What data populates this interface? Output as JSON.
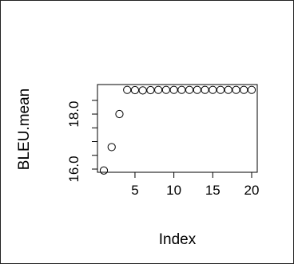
{
  "chart_data": {
    "type": "scatter",
    "title": "",
    "xlabel": "Index",
    "ylabel": "BLEU.mean",
    "xlim": [
      1,
      20
    ],
    "ylim": [
      16.0,
      18.9
    ],
    "xticks": [
      5,
      10,
      15,
      20
    ],
    "xtick_labels": [
      "5",
      "10",
      "15",
      "20"
    ],
    "yticks": [
      16.0,
      16.5,
      17.0,
      17.5,
      18.0,
      18.5
    ],
    "ytick_labels": [
      "16.0",
      "",
      "",
      "",
      "18.0",
      ""
    ],
    "grid": false,
    "marker": "open-circle",
    "x": [
      1,
      2,
      3,
      4,
      5,
      6,
      7,
      8,
      9,
      10,
      11,
      12,
      13,
      14,
      15,
      16,
      17,
      18,
      19,
      20
    ],
    "y": [
      15.95,
      16.8,
      18.0,
      18.88,
      18.87,
      18.86,
      18.87,
      18.88,
      18.88,
      18.88,
      18.88,
      18.88,
      18.88,
      18.88,
      18.88,
      18.88,
      18.88,
      18.88,
      18.88,
      18.88
    ]
  }
}
